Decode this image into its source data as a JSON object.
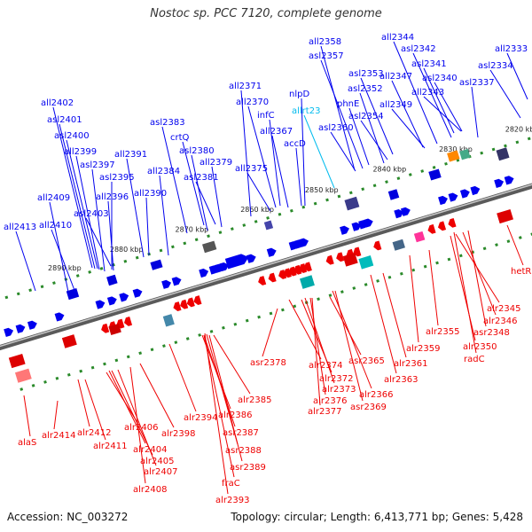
{
  "title": "Nostoc sp. PCC 7120, complete genome",
  "footer": {
    "accession": "Accession: NC_003272",
    "topology": "Topology: circular; Length: 6,413,771 bp; Genes: 5,428"
  },
  "colors": {
    "forward": "#0000ee",
    "reverse": "#ee0000",
    "highlight": "#00bbee",
    "backbone": "#808080",
    "tick": "#2a8a2a"
  },
  "ticks": [
    {
      "label": "2890 kbp"
    },
    {
      "label": "2880 kbp"
    },
    {
      "label": "2870 kbp"
    },
    {
      "label": "2860 kbp"
    },
    {
      "label": "2850 kbp"
    },
    {
      "label": "2840 kbp"
    },
    {
      "label": "2830 kbp"
    },
    {
      "label": "2820 kbp"
    }
  ],
  "top_labels": [
    {
      "t": "all2413"
    },
    {
      "t": "all2410"
    },
    {
      "t": "all2409"
    },
    {
      "t": "asl2403"
    },
    {
      "t": "all2396"
    },
    {
      "t": "asl2395"
    },
    {
      "t": "asl2397"
    },
    {
      "t": "all2399"
    },
    {
      "t": "asl2400"
    },
    {
      "t": "asl2401"
    },
    {
      "t": "all2402"
    },
    {
      "t": "all2391"
    },
    {
      "t": "all2390"
    },
    {
      "t": "all2384"
    },
    {
      "t": "asl2383"
    },
    {
      "t": "crtQ"
    },
    {
      "t": "asl2380"
    },
    {
      "t": "asl2381"
    },
    {
      "t": "all2379"
    },
    {
      "t": "all2375"
    },
    {
      "t": "all2371"
    },
    {
      "t": "all2370"
    },
    {
      "t": "infC"
    },
    {
      "t": "all2367"
    },
    {
      "t": "accD"
    },
    {
      "t": "nlpD"
    },
    {
      "t": "allrt23",
      "hl": true
    },
    {
      "t": "asl2360"
    },
    {
      "t": "all2358"
    },
    {
      "t": "asl2357"
    },
    {
      "t": "phnE"
    },
    {
      "t": "asl2354"
    },
    {
      "t": "asl2352"
    },
    {
      "t": "asl2353"
    },
    {
      "t": "all2349"
    },
    {
      "t": "all2347"
    },
    {
      "t": "all2344"
    },
    {
      "t": "asl2342"
    },
    {
      "t": "asl2341"
    },
    {
      "t": "asl2340"
    },
    {
      "t": "all2343"
    },
    {
      "t": "asl2337"
    },
    {
      "t": "asl2334"
    },
    {
      "t": "all2333"
    }
  ],
  "bottom_labels": [
    {
      "t": "alaS"
    },
    {
      "t": "alr2414"
    },
    {
      "t": "alr2412"
    },
    {
      "t": "alr2411"
    },
    {
      "t": "alr2406"
    },
    {
      "t": "alr2404"
    },
    {
      "t": "alr2405"
    },
    {
      "t": "alr2407"
    },
    {
      "t": "alr2408"
    },
    {
      "t": "alr2398"
    },
    {
      "t": "alr2394"
    },
    {
      "t": "alr2386"
    },
    {
      "t": "asr2387"
    },
    {
      "t": "asr2388"
    },
    {
      "t": "asr2389"
    },
    {
      "t": "fraC"
    },
    {
      "t": "alr2393"
    },
    {
      "t": "alr2385"
    },
    {
      "t": "asr2378"
    },
    {
      "t": "alr2374"
    },
    {
      "t": "alr2372"
    },
    {
      "t": "alr2373"
    },
    {
      "t": "alr2376"
    },
    {
      "t": "alr2377"
    },
    {
      "t": "asr2365"
    },
    {
      "t": "alr2366"
    },
    {
      "t": "asr2369"
    },
    {
      "t": "alr2363"
    },
    {
      "t": "alr2361"
    },
    {
      "t": "alr2359"
    },
    {
      "t": "alr2355"
    },
    {
      "t": "alr2350"
    },
    {
      "t": "radC"
    },
    {
      "t": "alr2345"
    },
    {
      "t": "alr2346"
    },
    {
      "t": "asr2348"
    },
    {
      "t": "hetR"
    }
  ]
}
